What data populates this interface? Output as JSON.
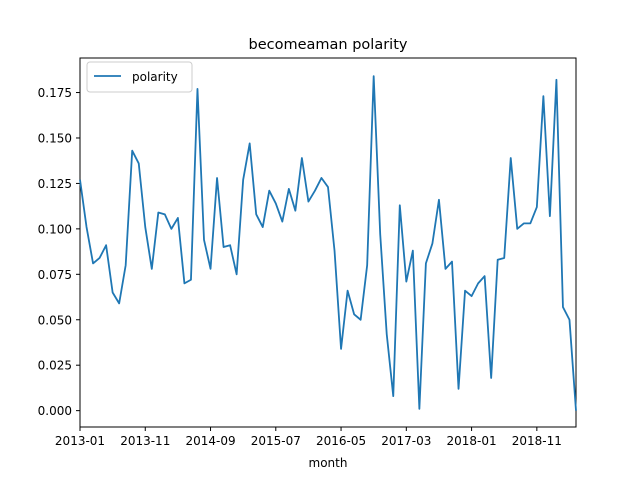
{
  "chart_data": {
    "type": "line",
    "title": "becomeaman polarity",
    "xlabel": "month",
    "ylabel": "",
    "legend": {
      "entries": [
        "polarity"
      ],
      "placement": "top-left"
    },
    "grid": false,
    "x_tick_labels": [
      "2013-01",
      "2013-11",
      "2014-09",
      "2015-07",
      "2016-05",
      "2017-03",
      "2018-01",
      "2018-11"
    ],
    "y_tick_labels": [
      "0.000",
      "0.025",
      "0.050",
      "0.075",
      "0.100",
      "0.125",
      "0.150",
      "0.175"
    ],
    "y_ticks": [
      0,
      0.025,
      0.05,
      0.075,
      0.1,
      0.125,
      0.15,
      0.175
    ],
    "ylim": [
      -0.009,
      0.194
    ],
    "x": [
      "2013-01",
      "2013-02",
      "2013-03",
      "2013-04",
      "2013-05",
      "2013-06",
      "2013-07",
      "2013-08",
      "2013-09",
      "2013-10",
      "2013-11",
      "2013-12",
      "2014-01",
      "2014-02",
      "2014-03",
      "2014-04",
      "2014-05",
      "2014-06",
      "2014-07",
      "2014-08",
      "2014-09",
      "2014-10",
      "2014-11",
      "2014-12",
      "2015-01",
      "2015-02",
      "2015-03",
      "2015-04",
      "2015-05",
      "2015-06",
      "2015-07",
      "2015-08",
      "2015-09",
      "2015-10",
      "2015-11",
      "2015-12",
      "2016-01",
      "2016-02",
      "2016-03",
      "2016-04",
      "2016-05",
      "2016-06",
      "2016-07",
      "2016-08",
      "2016-09",
      "2016-10",
      "2016-11",
      "2016-12",
      "2017-01",
      "2017-02",
      "2017-03",
      "2017-04",
      "2017-05",
      "2017-06",
      "2017-07",
      "2017-08",
      "2017-09",
      "2017-10",
      "2017-11",
      "2017-12",
      "2018-01",
      "2018-02",
      "2018-03",
      "2018-04",
      "2018-05",
      "2018-06",
      "2018-07",
      "2018-08",
      "2018-09",
      "2018-10",
      "2018-11",
      "2018-12",
      "2019-01",
      "2019-02",
      "2019-03",
      "2019-04",
      "2019-05"
    ],
    "series": [
      {
        "name": "polarity",
        "color": "#1f77b4",
        "values": [
          0.127,
          0.101,
          0.081,
          0.084,
          0.091,
          0.065,
          0.059,
          0.08,
          0.143,
          0.136,
          0.101,
          0.078,
          0.109,
          0.108,
          0.1,
          0.106,
          0.07,
          0.072,
          0.177,
          0.094,
          0.078,
          0.128,
          0.09,
          0.091,
          0.075,
          0.127,
          0.147,
          0.108,
          0.101,
          0.121,
          0.114,
          0.104,
          0.122,
          0.11,
          0.139,
          0.115,
          0.121,
          0.128,
          0.123,
          0.088,
          0.034,
          0.066,
          0.053,
          0.05,
          0.08,
          0.184,
          0.097,
          0.042,
          0.008,
          0.113,
          0.071,
          0.088,
          0.001,
          0.081,
          0.092,
          0.116,
          0.078,
          0.082,
          0.012,
          0.066,
          0.063,
          0.07,
          0.074,
          0.018,
          0.083,
          0.084,
          0.139,
          0.1,
          0.103,
          0.103,
          0.112,
          0.173,
          0.107,
          0.182,
          0.057,
          0.05,
          0.0
        ]
      }
    ]
  }
}
